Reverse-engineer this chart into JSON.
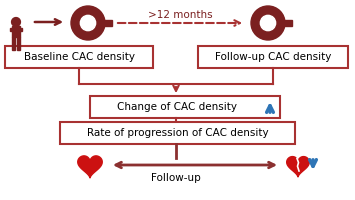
{
  "bg_color": "#ffffff",
  "dark_red": "#7B2020",
  "red": "#A83232",
  "brown_red": "#8B3030",
  "blue": "#2E75B6",
  "months_label": ">12 months",
  "box1_text": "Baseline CAC density",
  "box2_text": "Follow-up CAC density",
  "box3_text": "Change of CAC density",
  "box4_text": "Rate of progression of CAC density",
  "followup_label": "Follow-up",
  "fig_w": 3.55,
  "fig_h": 2.0,
  "dpi": 100
}
